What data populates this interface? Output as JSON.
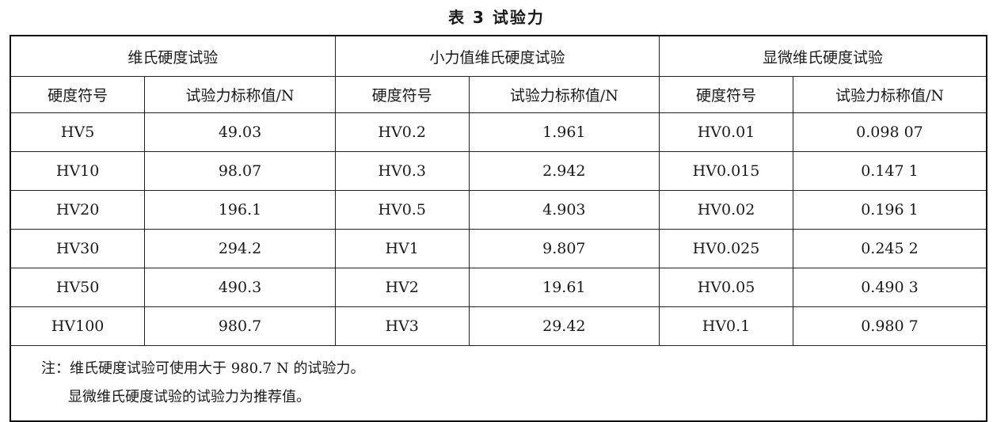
{
  "title": "表 3  试验力",
  "groups": [
    "维氏硬度试验",
    "小力值维氏硬度试验",
    "显微维氏硬度试验"
  ],
  "subheaders": [
    "硬度符号",
    "试验力标称值/N",
    "硬度符号",
    "试验力标称值/N",
    "硬度符号",
    "试验力标称值/N"
  ],
  "rows": [
    [
      "HV5",
      "49.03",
      "HV0.2",
      "1.961",
      "HV0.01",
      "0.098 07"
    ],
    [
      "HV10",
      "98.07",
      "HV0.3",
      "2.942",
      "HV0.015",
      "0.147 1"
    ],
    [
      "HV20",
      "196.1",
      "HV0.5",
      "4.903",
      "HV0.02",
      "0.196 1"
    ],
    [
      "HV30",
      "294.2",
      "HV1",
      "9.807",
      "HV0.025",
      "0.245 2"
    ],
    [
      "HV50",
      "490.3",
      "HV2",
      "19.61",
      "HV0.05",
      "0.490 3"
    ],
    [
      "HV100",
      "980.7",
      "HV3",
      "29.42",
      "HV0.1",
      "0.980 7"
    ]
  ],
  "notes": [
    "注：维氏硬度试验可使用大于 980.7 N 的试验力。",
    "显微维氏硬度试验的试验力为推荐值。"
  ]
}
